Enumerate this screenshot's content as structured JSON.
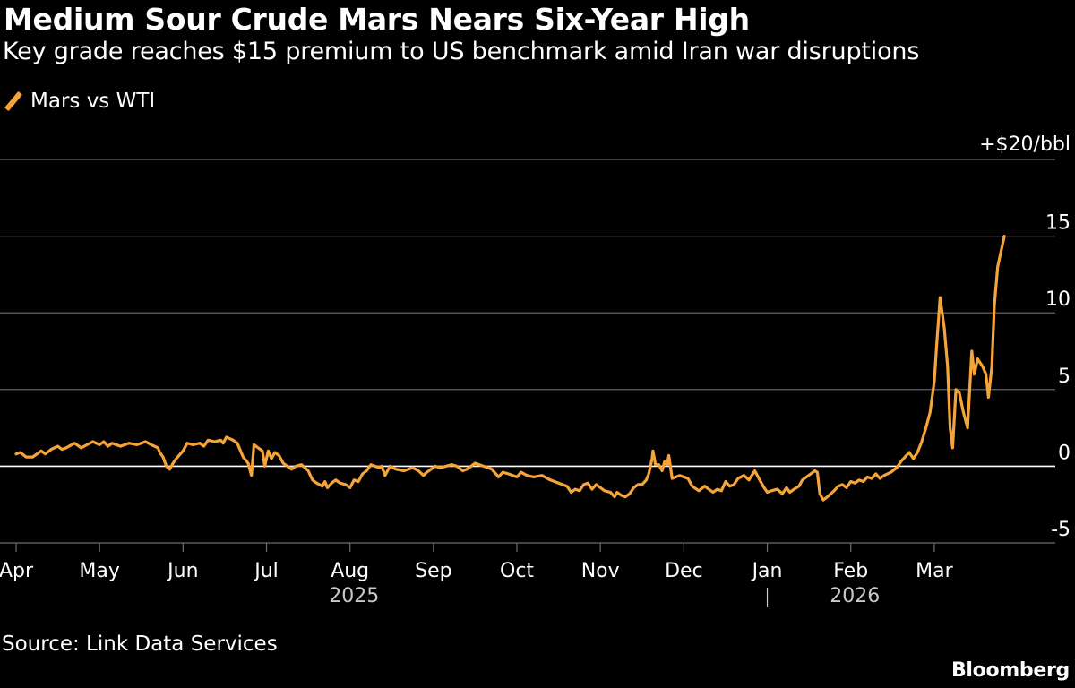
{
  "header": {
    "title": "Medium Sour Crude Mars Nears Six-Year High",
    "subtitle": "Key grade reaches $15 premium to US benchmark amid Iran war disruptions"
  },
  "legend": {
    "label": "Mars vs WTI"
  },
  "footer": {
    "source": "Source: Link Data Services",
    "brand": "Bloomberg"
  },
  "colors": {
    "series": "#f6a43a",
    "grid": "#6e6e6e",
    "zero": "#ffffff",
    "background": "#000000"
  },
  "chart_data": {
    "type": "line",
    "title": "Medium Sour Crude Mars Nears Six-Year High",
    "subtitle": "Key grade reaches $15 premium to US benchmark amid Iran war disruptions",
    "ylabel": "$/bbl",
    "ylim": [
      -5,
      20
    ],
    "y_ticks": [
      {
        "value": 20,
        "label": "+$20/bbl"
      },
      {
        "value": 15,
        "label": "15"
      },
      {
        "value": 10,
        "label": "10"
      },
      {
        "value": 5,
        "label": "5"
      },
      {
        "value": 0,
        "label": "0"
      },
      {
        "value": -5,
        "label": "-5"
      }
    ],
    "x_unit": "month index (0 = Apr 1 2025)",
    "xlim": [
      0,
      12.3
    ],
    "x_ticks": [
      {
        "value": 0,
        "label": "Apr"
      },
      {
        "value": 1,
        "label": "May"
      },
      {
        "value": 2,
        "label": "Jun"
      },
      {
        "value": 3,
        "label": "Jul"
      },
      {
        "value": 4,
        "label": "Aug"
      },
      {
        "value": 5,
        "label": "Sep"
      },
      {
        "value": 6,
        "label": "Oct"
      },
      {
        "value": 7,
        "label": "Nov"
      },
      {
        "value": 8,
        "label": "Dec"
      },
      {
        "value": 9,
        "label": "Jan"
      },
      {
        "value": 10,
        "label": "Feb"
      },
      {
        "value": 11,
        "label": "Mar"
      }
    ],
    "years": [
      {
        "label": "2025",
        "center": 4.5
      },
      {
        "label": "2026",
        "center": 10.5
      }
    ],
    "year_divider": 9,
    "grid": true,
    "legend_position": "top-left",
    "series": [
      {
        "name": "Mars vs WTI",
        "points": [
          [
            0.0,
            0.8
          ],
          [
            0.05,
            0.9
          ],
          [
            0.12,
            0.6
          ],
          [
            0.2,
            0.6
          ],
          [
            0.3,
            1.0
          ],
          [
            0.35,
            0.8
          ],
          [
            0.42,
            1.1
          ],
          [
            0.5,
            1.3
          ],
          [
            0.55,
            1.1
          ],
          [
            0.6,
            1.2
          ],
          [
            0.7,
            1.5
          ],
          [
            0.78,
            1.2
          ],
          [
            0.85,
            1.4
          ],
          [
            0.92,
            1.6
          ],
          [
            1.0,
            1.4
          ],
          [
            1.05,
            1.6
          ],
          [
            1.1,
            1.3
          ],
          [
            1.15,
            1.5
          ],
          [
            1.25,
            1.3
          ],
          [
            1.35,
            1.5
          ],
          [
            1.45,
            1.4
          ],
          [
            1.55,
            1.6
          ],
          [
            1.62,
            1.4
          ],
          [
            1.7,
            1.2
          ],
          [
            1.72,
            0.9
          ],
          [
            1.76,
            0.6
          ],
          [
            1.8,
            0.0
          ],
          [
            1.84,
            -0.2
          ],
          [
            1.88,
            0.2
          ],
          [
            1.92,
            0.5
          ],
          [
            2.0,
            1.0
          ],
          [
            2.05,
            1.5
          ],
          [
            2.12,
            1.4
          ],
          [
            2.2,
            1.5
          ],
          [
            2.25,
            1.3
          ],
          [
            2.3,
            1.7
          ],
          [
            2.38,
            1.6
          ],
          [
            2.45,
            1.7
          ],
          [
            2.48,
            1.5
          ],
          [
            2.52,
            1.9
          ],
          [
            2.6,
            1.7
          ],
          [
            2.65,
            1.5
          ],
          [
            2.72,
            0.6
          ],
          [
            2.78,
            0.2
          ],
          [
            2.82,
            -0.6
          ],
          [
            2.85,
            1.4
          ],
          [
            2.9,
            1.2
          ],
          [
            2.95,
            1.0
          ],
          [
            2.98,
            0.0
          ],
          [
            3.02,
            1.0
          ],
          [
            3.06,
            0.5
          ],
          [
            3.1,
            0.9
          ],
          [
            3.15,
            0.7
          ],
          [
            3.2,
            0.2
          ],
          [
            3.25,
            0.0
          ],
          [
            3.3,
            -0.2
          ],
          [
            3.35,
            0.0
          ],
          [
            3.42,
            0.1
          ],
          [
            3.5,
            -0.3
          ],
          [
            3.55,
            -0.9
          ],
          [
            3.6,
            -1.1
          ],
          [
            3.67,
            -1.3
          ],
          [
            3.7,
            -1.0
          ],
          [
            3.73,
            -1.4
          ],
          [
            3.78,
            -1.1
          ],
          [
            3.83,
            -0.9
          ],
          [
            3.88,
            -1.1
          ],
          [
            3.95,
            -1.2
          ],
          [
            4.0,
            -1.4
          ],
          [
            4.05,
            -0.9
          ],
          [
            4.1,
            -1.0
          ],
          [
            4.15,
            -0.5
          ],
          [
            4.2,
            -0.3
          ],
          [
            4.25,
            0.1
          ],
          [
            4.3,
            0.0
          ],
          [
            4.35,
            -0.1
          ],
          [
            4.38,
            0.0
          ],
          [
            4.42,
            -0.6
          ],
          [
            4.48,
            0.0
          ],
          [
            4.55,
            -0.2
          ],
          [
            4.65,
            -0.3
          ],
          [
            4.75,
            -0.1
          ],
          [
            4.82,
            -0.3
          ],
          [
            4.88,
            -0.6
          ],
          [
            4.92,
            -0.4
          ],
          [
            4.97,
            -0.2
          ],
          [
            5.02,
            0.0
          ],
          [
            5.08,
            -0.1
          ],
          [
            5.15,
            0.0
          ],
          [
            5.22,
            0.1
          ],
          [
            5.28,
            0.0
          ],
          [
            5.35,
            -0.3
          ],
          [
            5.4,
            -0.2
          ],
          [
            5.45,
            0.0
          ],
          [
            5.5,
            0.2
          ],
          [
            5.55,
            0.1
          ],
          [
            5.6,
            0.0
          ],
          [
            5.7,
            -0.2
          ],
          [
            5.78,
            -0.7
          ],
          [
            5.83,
            -0.4
          ],
          [
            5.9,
            -0.5
          ],
          [
            6.0,
            -0.7
          ],
          [
            6.05,
            -0.4
          ],
          [
            6.12,
            -0.6
          ],
          [
            6.2,
            -0.7
          ],
          [
            6.3,
            -0.6
          ],
          [
            6.4,
            -0.9
          ],
          [
            6.5,
            -1.1
          ],
          [
            6.6,
            -1.3
          ],
          [
            6.65,
            -1.7
          ],
          [
            6.7,
            -1.5
          ],
          [
            6.75,
            -1.6
          ],
          [
            6.8,
            -1.2
          ],
          [
            6.85,
            -1.1
          ],
          [
            6.9,
            -1.5
          ],
          [
            6.95,
            -1.2
          ],
          [
            7.0,
            -1.4
          ],
          [
            7.05,
            -1.6
          ],
          [
            7.12,
            -1.7
          ],
          [
            7.17,
            -2.0
          ],
          [
            7.2,
            -1.7
          ],
          [
            7.25,
            -1.9
          ],
          [
            7.3,
            -2.0
          ],
          [
            7.35,
            -1.8
          ],
          [
            7.4,
            -1.4
          ],
          [
            7.45,
            -1.2
          ],
          [
            7.5,
            -1.2
          ],
          [
            7.55,
            -0.9
          ],
          [
            7.58,
            -0.5
          ],
          [
            7.62,
            0.5
          ],
          [
            7.63,
            1.0
          ],
          [
            7.66,
            0.1
          ],
          [
            7.7,
            0.1
          ],
          [
            7.74,
            -0.3
          ],
          [
            7.77,
            0.3
          ],
          [
            7.8,
            0.1
          ],
          [
            7.82,
            0.7
          ],
          [
            7.86,
            -0.8
          ],
          [
            7.95,
            -0.6
          ],
          [
            8.05,
            -0.8
          ],
          [
            8.1,
            -1.3
          ],
          [
            8.18,
            -1.6
          ],
          [
            8.25,
            -1.3
          ],
          [
            8.3,
            -1.5
          ],
          [
            8.35,
            -1.7
          ],
          [
            8.4,
            -1.5
          ],
          [
            8.45,
            -1.6
          ],
          [
            8.5,
            -1.0
          ],
          [
            8.55,
            -1.3
          ],
          [
            8.6,
            -1.2
          ],
          [
            8.65,
            -0.8
          ],
          [
            8.72,
            -0.6
          ],
          [
            8.78,
            -0.9
          ],
          [
            8.85,
            -0.3
          ],
          [
            8.9,
            -0.8
          ],
          [
            8.95,
            -1.3
          ],
          [
            9.0,
            -1.7
          ],
          [
            9.05,
            -1.6
          ],
          [
            9.12,
            -1.5
          ],
          [
            9.18,
            -1.8
          ],
          [
            9.23,
            -1.4
          ],
          [
            9.27,
            -1.7
          ],
          [
            9.32,
            -1.5
          ],
          [
            9.38,
            -1.3
          ],
          [
            9.42,
            -0.9
          ],
          [
            9.47,
            -0.7
          ],
          [
            9.52,
            -0.5
          ],
          [
            9.57,
            -0.3
          ],
          [
            9.6,
            -0.4
          ],
          [
            9.63,
            -1.8
          ],
          [
            9.67,
            -2.2
          ],
          [
            9.72,
            -2.0
          ],
          [
            9.8,
            -1.6
          ],
          [
            9.85,
            -1.3
          ],
          [
            9.9,
            -1.2
          ],
          [
            9.95,
            -1.4
          ],
          [
            10.0,
            -1.0
          ],
          [
            10.05,
            -1.1
          ],
          [
            10.1,
            -0.9
          ],
          [
            10.15,
            -1.0
          ],
          [
            10.2,
            -0.7
          ],
          [
            10.25,
            -0.8
          ],
          [
            10.3,
            -0.5
          ],
          [
            10.35,
            -0.8
          ],
          [
            10.4,
            -0.6
          ],
          [
            10.48,
            -0.4
          ],
          [
            10.55,
            -0.1
          ],
          [
            10.6,
            0.3
          ],
          [
            10.65,
            0.6
          ],
          [
            10.7,
            0.9
          ],
          [
            10.75,
            0.5
          ],
          [
            10.8,
            0.9
          ],
          [
            10.85,
            1.6
          ],
          [
            10.9,
            2.5
          ],
          [
            10.95,
            3.5
          ],
          [
            11.0,
            5.5
          ],
          [
            11.03,
            8.0
          ],
          [
            11.07,
            11.0
          ],
          [
            11.12,
            9.0
          ],
          [
            11.16,
            6.5
          ],
          [
            11.19,
            2.5
          ],
          [
            11.22,
            1.2
          ],
          [
            11.26,
            5.0
          ],
          [
            11.3,
            4.8
          ],
          [
            11.35,
            3.5
          ],
          [
            11.4,
            2.5
          ],
          [
            11.45,
            7.5
          ],
          [
            11.48,
            6.0
          ],
          [
            11.52,
            7.0
          ],
          [
            11.58,
            6.5
          ],
          [
            11.62,
            6.0
          ],
          [
            11.65,
            4.5
          ],
          [
            11.69,
            6.5
          ],
          [
            11.72,
            10.5
          ],
          [
            11.76,
            13.0
          ],
          [
            11.8,
            14.0
          ],
          [
            11.84,
            15.0
          ]
        ]
      }
    ]
  }
}
